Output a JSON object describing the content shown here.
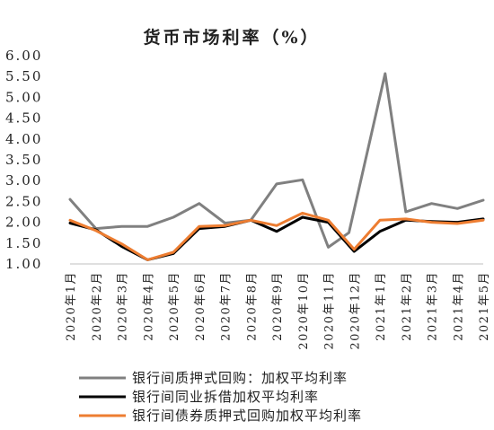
{
  "chart_data": {
    "type": "line",
    "title": "货币市场利率（%）",
    "xlabel": "",
    "ylabel": "",
    "categories": [
      "2020年1月",
      "2020年2月",
      "2020年3月",
      "2020年4月",
      "2020年5月",
      "2020年6月",
      "2020年7月",
      "2020年8月",
      "2020年9月",
      "2020年10月",
      "2020年11月",
      "2020年12月",
      "2021年1月",
      "2021年2月",
      "2021年3月",
      "2021年4月",
      "2021年5月"
    ],
    "ylim": [
      1.0,
      6.0
    ],
    "yticks": [
      "1.00",
      "1.50",
      "2.00",
      "2.50",
      "3.00",
      "3.50",
      "4.00",
      "4.50",
      "5.00",
      "5.50",
      "6.00"
    ],
    "grid": false,
    "legend_position": "bottom",
    "series": [
      {
        "name": "银行间质押式回购：加权平均利率",
        "color": "#808080",
        "values": [
          2.55,
          1.85,
          1.9,
          1.9,
          2.12,
          2.45,
          1.98,
          2.05,
          2.92,
          3.02,
          1.4,
          1.75,
          5.57,
          2.25,
          2.45,
          2.33,
          2.53
        ],
        "x_offsets": [
          0,
          0,
          0,
          0,
          0,
          0,
          0,
          0,
          0,
          0,
          0,
          -0.2,
          0.2,
          0,
          0,
          0,
          0
        ]
      },
      {
        "name": "银行间同业拆借加权平均利率",
        "color": "#000000",
        "values": [
          1.98,
          1.82,
          1.42,
          1.1,
          1.25,
          1.85,
          1.9,
          2.05,
          1.78,
          2.12,
          2.0,
          1.3,
          1.78,
          2.05,
          2.02,
          2.0,
          2.08
        ],
        "x_offsets": [
          0,
          0,
          0,
          0,
          0,
          0,
          0,
          0,
          0,
          0,
          0,
          0,
          0,
          0,
          0,
          0,
          0
        ]
      },
      {
        "name": "银行间债券质押式回购加权平均利率",
        "color": "#ED7D31",
        "values": [
          2.05,
          1.8,
          1.48,
          1.1,
          1.28,
          1.9,
          1.92,
          2.05,
          1.92,
          2.22,
          2.05,
          1.35,
          2.05,
          2.08,
          2.0,
          1.97,
          2.05
        ],
        "x_offsets": [
          0,
          0,
          0,
          0,
          0,
          0,
          0,
          0,
          0,
          0,
          0,
          0,
          0,
          0,
          0,
          0,
          0
        ]
      }
    ]
  }
}
